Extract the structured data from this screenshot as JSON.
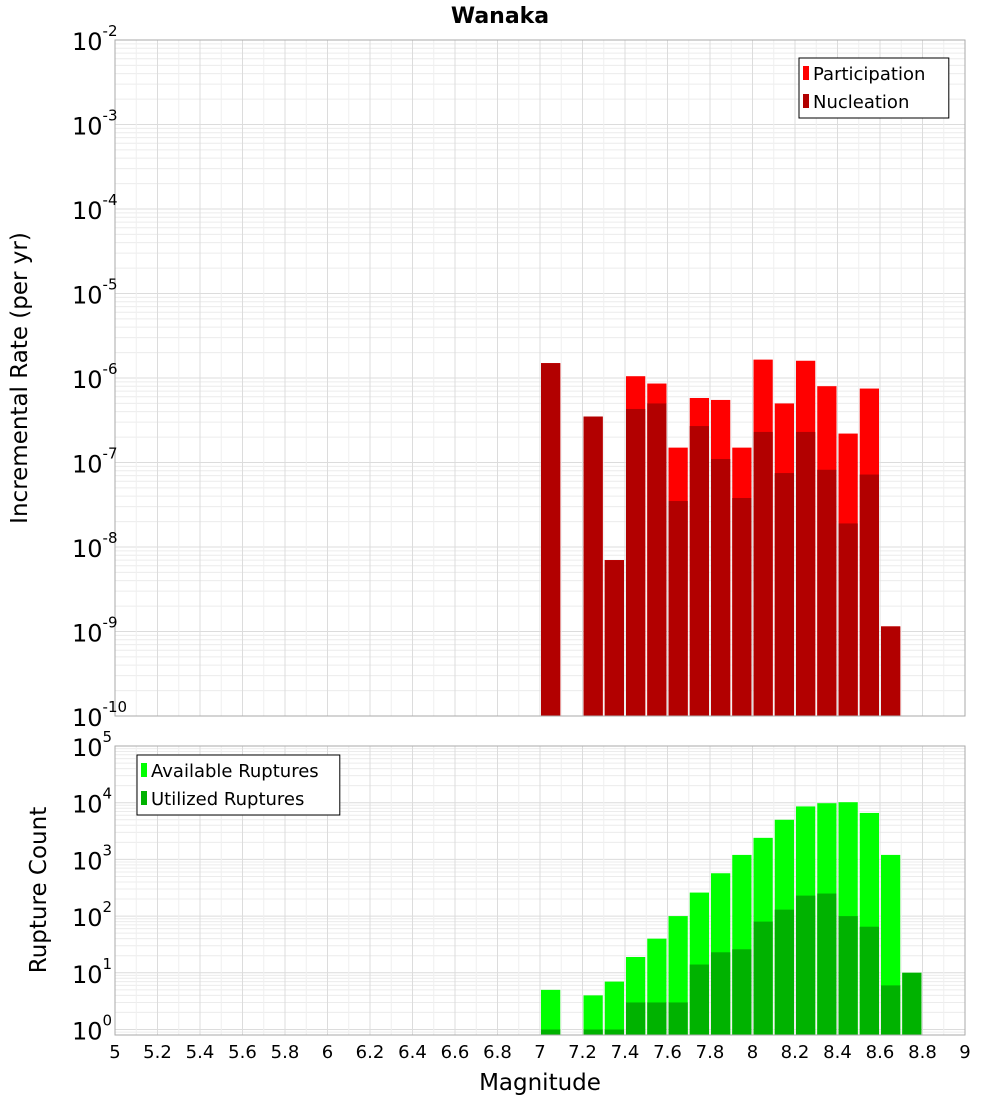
{
  "title": "Wanaka",
  "xlabel": "Magnitude",
  "x_ticks": [
    "5",
    "5.2",
    "5.4",
    "5.6",
    "5.8",
    "6",
    "6.2",
    "6.4",
    "6.6",
    "6.8",
    "7",
    "7.2",
    "7.4",
    "7.6",
    "7.8",
    "8",
    "8.2",
    "8.4",
    "8.6",
    "8.8",
    "9"
  ],
  "chart_data": [
    {
      "type": "bar",
      "ylabel": "Incremental Rate (per yr)",
      "yscale": "log",
      "ylim": [
        1e-10,
        0.01
      ],
      "xlim": [
        5,
        9
      ],
      "bin_width": 0.1,
      "legend_position": "top-right",
      "grid": true,
      "y_tick_exponents": [
        "-2",
        "-3",
        "-4",
        "-5",
        "-6",
        "-7",
        "-8",
        "-9",
        "-10"
      ],
      "series": [
        {
          "name": "Participation",
          "color": "#ff0000",
          "points": [
            {
              "x": 7.05,
              "y": 1.5e-06
            },
            {
              "x": 7.25,
              "y": 3.5e-07
            },
            {
              "x": 7.35,
              "y": 7e-09
            },
            {
              "x": 7.45,
              "y": 1.05e-06
            },
            {
              "x": 7.55,
              "y": 8.6e-07
            },
            {
              "x": 7.65,
              "y": 1.5e-07
            },
            {
              "x": 7.75,
              "y": 5.8e-07
            },
            {
              "x": 7.85,
              "y": 5.5e-07
            },
            {
              "x": 7.95,
              "y": 1.5e-07
            },
            {
              "x": 8.05,
              "y": 1.65e-06
            },
            {
              "x": 8.15,
              "y": 5e-07
            },
            {
              "x": 8.25,
              "y": 1.6e-06
            },
            {
              "x": 8.35,
              "y": 8e-07
            },
            {
              "x": 8.45,
              "y": 2.2e-07
            },
            {
              "x": 8.55,
              "y": 7.5e-07
            },
            {
              "x": 8.65,
              "y": 1.15e-09
            }
          ]
        },
        {
          "name": "Nucleation",
          "color": "#b20000",
          "points": [
            {
              "x": 7.05,
              "y": 1.5e-06
            },
            {
              "x": 7.25,
              "y": 3.5e-07
            },
            {
              "x": 7.35,
              "y": 7e-09
            },
            {
              "x": 7.45,
              "y": 4.3e-07
            },
            {
              "x": 7.55,
              "y": 5e-07
            },
            {
              "x": 7.65,
              "y": 3.5e-08
            },
            {
              "x": 7.75,
              "y": 2.7e-07
            },
            {
              "x": 7.85,
              "y": 1.1e-07
            },
            {
              "x": 7.95,
              "y": 3.8e-08
            },
            {
              "x": 8.05,
              "y": 2.3e-07
            },
            {
              "x": 8.15,
              "y": 7.5e-08
            },
            {
              "x": 8.25,
              "y": 2.3e-07
            },
            {
              "x": 8.35,
              "y": 8.2e-08
            },
            {
              "x": 8.45,
              "y": 1.9e-08
            },
            {
              "x": 8.55,
              "y": 7.2e-08
            },
            {
              "x": 8.65,
              "y": 1.15e-09
            }
          ]
        }
      ]
    },
    {
      "type": "bar",
      "ylabel": "Rupture Count",
      "yscale": "log",
      "ylim": [
        0.8,
        100000.0
      ],
      "xlim": [
        5,
        9
      ],
      "bin_width": 0.1,
      "legend_position": "top-left",
      "grid": true,
      "y_tick_exponents": [
        "5",
        "4",
        "3",
        "2",
        "1",
        "0"
      ],
      "series": [
        {
          "name": "Available Ruptures",
          "color": "#00ff00",
          "points": [
            {
              "x": 7.05,
              "y": 5
            },
            {
              "x": 7.25,
              "y": 4
            },
            {
              "x": 7.35,
              "y": 7
            },
            {
              "x": 7.45,
              "y": 19
            },
            {
              "x": 7.55,
              "y": 40
            },
            {
              "x": 7.65,
              "y": 100
            },
            {
              "x": 7.75,
              "y": 260
            },
            {
              "x": 7.85,
              "y": 570
            },
            {
              "x": 7.95,
              "y": 1200
            },
            {
              "x": 8.05,
              "y": 2400
            },
            {
              "x": 8.15,
              "y": 5000
            },
            {
              "x": 8.25,
              "y": 8600
            },
            {
              "x": 8.35,
              "y": 9800
            },
            {
              "x": 8.45,
              "y": 10200
            },
            {
              "x": 8.55,
              "y": 6600
            },
            {
              "x": 8.65,
              "y": 1200
            },
            {
              "x": 8.75,
              "y": 10
            }
          ]
        },
        {
          "name": "Utilized Ruptures",
          "color": "#00b200",
          "points": [
            {
              "x": 7.05,
              "y": 1
            },
            {
              "x": 7.25,
              "y": 1
            },
            {
              "x": 7.35,
              "y": 1
            },
            {
              "x": 7.45,
              "y": 3
            },
            {
              "x": 7.55,
              "y": 3
            },
            {
              "x": 7.65,
              "y": 3
            },
            {
              "x": 7.75,
              "y": 14
            },
            {
              "x": 7.85,
              "y": 23
            },
            {
              "x": 7.95,
              "y": 26
            },
            {
              "x": 8.05,
              "y": 80
            },
            {
              "x": 8.15,
              "y": 130
            },
            {
              "x": 8.25,
              "y": 230
            },
            {
              "x": 8.35,
              "y": 250
            },
            {
              "x": 8.45,
              "y": 100
            },
            {
              "x": 8.55,
              "y": 65
            },
            {
              "x": 8.65,
              "y": 6
            },
            {
              "x": 8.75,
              "y": 10
            }
          ]
        }
      ]
    }
  ]
}
